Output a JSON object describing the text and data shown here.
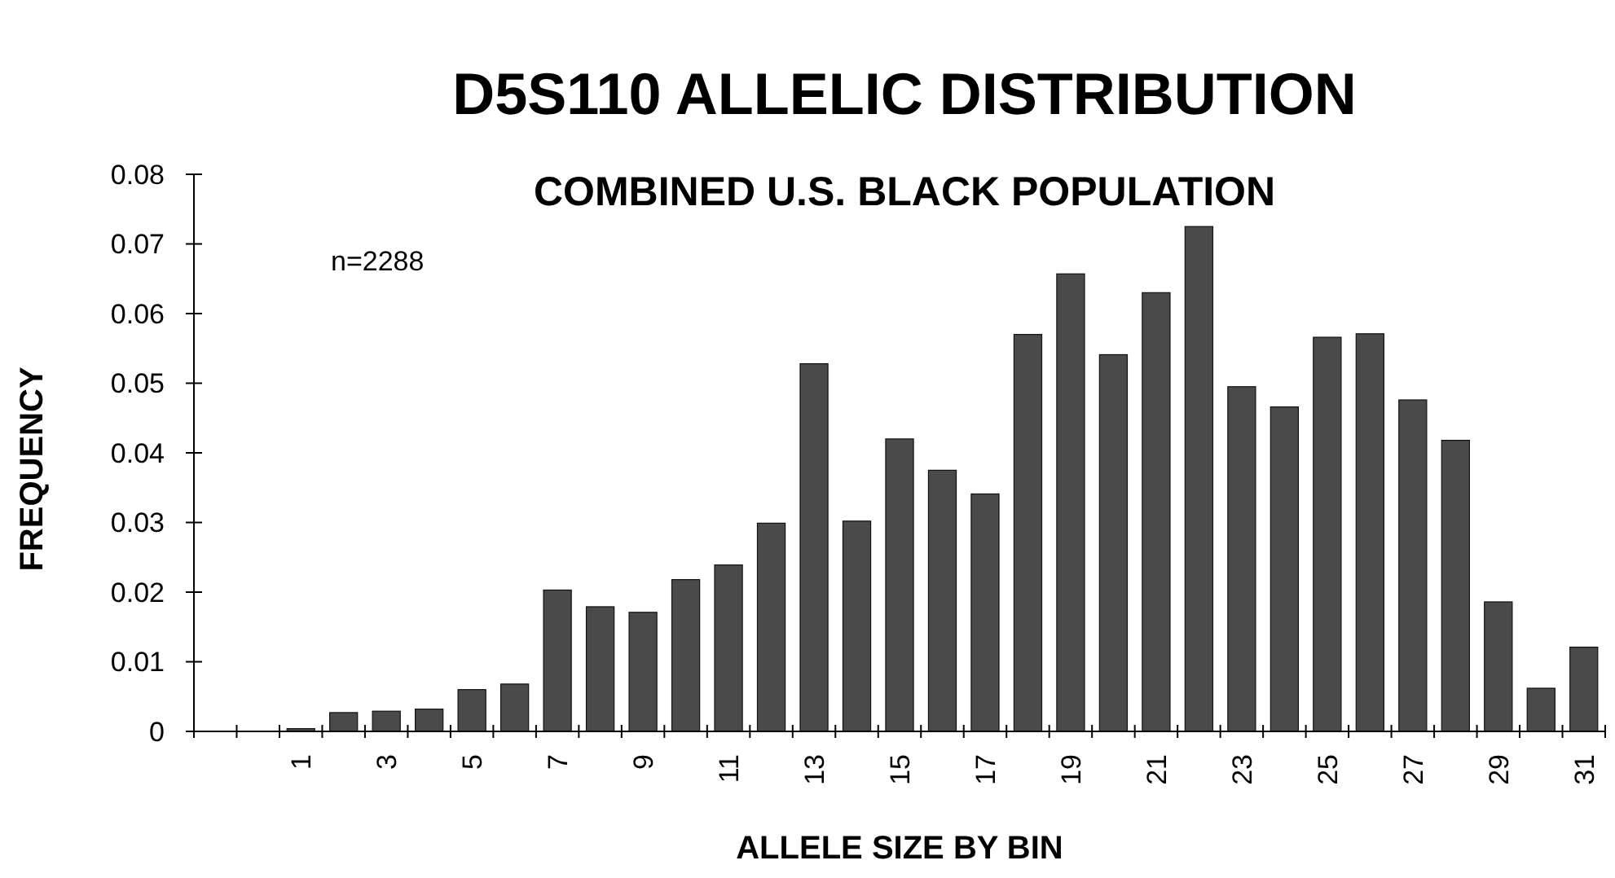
{
  "chart_data": {
    "type": "bar",
    "title": "D5S110 ALLELIC DISTRIBUTION",
    "subtitle": "COMBINED U.S. BLACK POPULATION",
    "xlabel": "ALLELE SIZE BY BIN",
    "ylabel": "FREQUENCY",
    "annotations": [
      "n=2288"
    ],
    "categories": [
      null,
      null,
      "1",
      null,
      "3",
      null,
      "5",
      null,
      "7",
      null,
      "9",
      null,
      "11",
      null,
      "13",
      null,
      "15",
      null,
      "17",
      null,
      "19",
      null,
      "21",
      null,
      "23",
      null,
      "25",
      null,
      "27",
      null,
      "29",
      null,
      "31"
    ],
    "values": [
      null,
      null,
      0.0004,
      0.0027,
      0.0029,
      0.0032,
      0.006,
      0.0068,
      0.0203,
      0.0179,
      0.0171,
      0.0218,
      0.0239,
      0.0299,
      0.0528,
      0.0302,
      0.042,
      0.0375,
      0.0341,
      0.057,
      0.0657,
      0.0541,
      0.063,
      0.0725,
      0.0495,
      0.0466,
      0.0566,
      0.0571,
      0.0476,
      0.0418,
      0.0186,
      0.0062,
      0.0121
    ],
    "color": "#4a4a4a",
    "ylim": [
      0,
      0.08
    ],
    "yticks": [
      0,
      0.01,
      0.02,
      0.03,
      0.04,
      0.05,
      0.06,
      0.07,
      0.08
    ],
    "grid": false
  }
}
